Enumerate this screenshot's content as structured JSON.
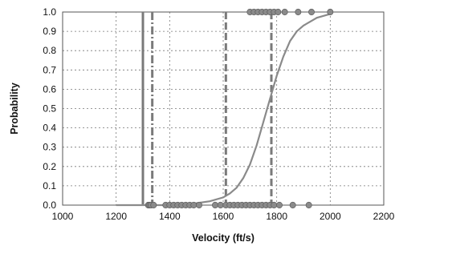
{
  "chart_data": {
    "type": "scatter",
    "title": "",
    "xlabel": "Velocity (ft/s)",
    "ylabel": "Probability",
    "xlim": [
      1000,
      2200
    ],
    "ylim": [
      0,
      1
    ],
    "x_ticks": [
      1000,
      1200,
      1400,
      1600,
      1800,
      2000,
      2200
    ],
    "y_ticks": [
      0.0,
      0.1,
      0.2,
      0.3,
      0.4,
      0.5,
      0.6,
      0.7,
      0.8,
      0.9,
      1.0
    ],
    "x_tick_labels": [
      "1000",
      "1200",
      "1400",
      "1600",
      "1800",
      "2000",
      "2200"
    ],
    "y_tick_labels": [
      "0.0",
      "0.1",
      "0.2",
      "0.3",
      "0.4",
      "0.5",
      "0.6",
      "0.7",
      "0.8",
      "0.9",
      "1.0"
    ],
    "grid": true,
    "legend": "none",
    "series": [
      {
        "kind": "points",
        "color": "#8a8a8a",
        "points": [
          [
            1320,
            0
          ],
          [
            1325,
            0
          ],
          [
            1330,
            0
          ],
          [
            1340,
            0
          ],
          [
            1385,
            0
          ],
          [
            1400,
            0
          ],
          [
            1415,
            0
          ],
          [
            1430,
            0
          ],
          [
            1445,
            0
          ],
          [
            1460,
            0
          ],
          [
            1475,
            0
          ],
          [
            1490,
            0
          ],
          [
            1510,
            0
          ],
          [
            1570,
            0
          ],
          [
            1590,
            0
          ],
          [
            1610,
            0
          ],
          [
            1625,
            0
          ],
          [
            1640,
            0
          ],
          [
            1655,
            0
          ],
          [
            1670,
            0
          ],
          [
            1685,
            0
          ],
          [
            1700,
            0
          ],
          [
            1715,
            0
          ],
          [
            1730,
            0
          ],
          [
            1745,
            0
          ],
          [
            1760,
            0
          ],
          [
            1775,
            0
          ],
          [
            1790,
            0
          ],
          [
            1810,
            0
          ],
          [
            1860,
            0
          ],
          [
            1920,
            0
          ],
          [
            1700,
            1
          ],
          [
            1715,
            1
          ],
          [
            1730,
            1
          ],
          [
            1745,
            1
          ],
          [
            1760,
            1
          ],
          [
            1775,
            1
          ],
          [
            1790,
            1
          ],
          [
            1805,
            1
          ],
          [
            1830,
            1
          ],
          [
            1880,
            1
          ],
          [
            1930,
            1
          ],
          [
            2000,
            1
          ]
        ]
      },
      {
        "kind": "curve",
        "color": "#8a8a8a",
        "x": [
          1200,
          1300,
          1400,
          1500,
          1550,
          1600,
          1625,
          1650,
          1675,
          1700,
          1725,
          1750,
          1775,
          1800,
          1825,
          1850,
          1875,
          1900,
          1925,
          1950,
          1975,
          2000
        ],
        "y": [
          0.0,
          0.0,
          0.0,
          0.01,
          0.02,
          0.04,
          0.06,
          0.09,
          0.14,
          0.21,
          0.31,
          0.43,
          0.55,
          0.67,
          0.77,
          0.85,
          0.9,
          0.93,
          0.95,
          0.97,
          0.98,
          0.99
        ]
      }
    ],
    "vertical_lines": [
      {
        "x": 1300,
        "style": "solid"
      },
      {
        "x": 1335,
        "style": "dashdot"
      },
      {
        "x": 1610,
        "style": "dashed"
      },
      {
        "x": 1780,
        "style": "dashed"
      }
    ]
  }
}
